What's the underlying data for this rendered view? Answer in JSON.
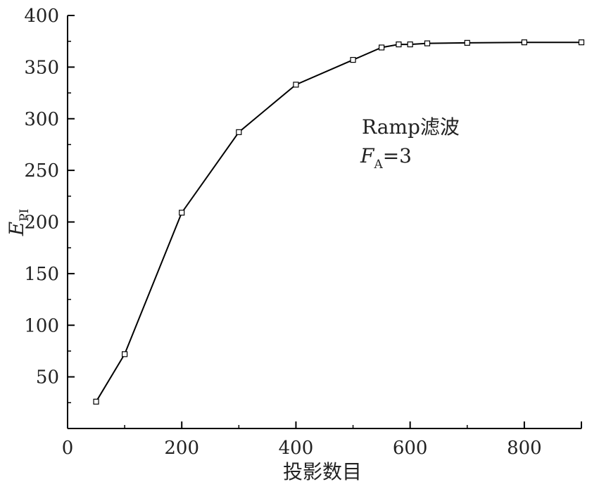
{
  "chart_data": {
    "type": "line",
    "title": "",
    "xlabel": "投影数目",
    "ylabel": {
      "main": "E",
      "sub": "PI"
    },
    "xlim": [
      0,
      900
    ],
    "ylim": [
      0,
      400
    ],
    "x_ticks": [
      0,
      200,
      400,
      600,
      800
    ],
    "y_ticks": [
      50,
      100,
      150,
      200,
      250,
      300,
      350,
      400
    ],
    "grid": false,
    "legend": "none",
    "series": [
      {
        "x": [
          50,
          100,
          200,
          300,
          400,
          500,
          550,
          580,
          600,
          630,
          700,
          800,
          900
        ],
        "y": [
          26,
          72,
          209,
          287,
          333,
          357,
          369,
          372,
          372,
          373,
          373.5,
          374,
          374
        ]
      }
    ],
    "annotation": {
      "line1": "Ramp滤波",
      "line2_main": "F",
      "line2_sub": "A",
      "line2_rest": "=3"
    }
  },
  "colors": {
    "line": "#000000",
    "marker_fill": "#ffffff",
    "axis": "#000000"
  }
}
